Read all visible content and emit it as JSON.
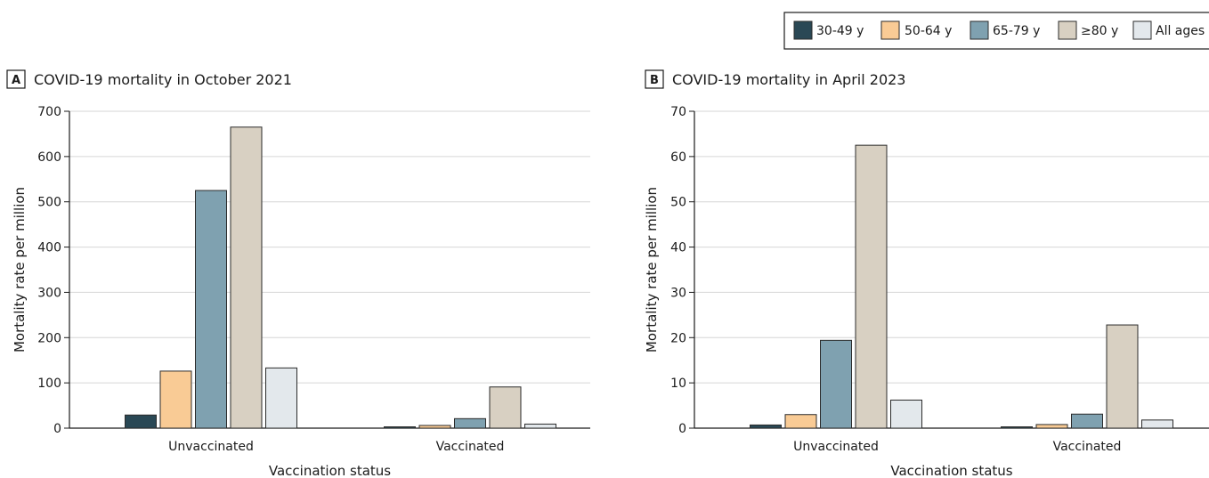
{
  "colors": {
    "30-49 y": "#2a4855",
    "50-64 y": "#f9cb95",
    "65-79 y": "#7fa1b0",
    "≥80 y": "#d8d0c2",
    "All ages": "#e3e8ec",
    "grid": "#d6d6d6",
    "bar_stroke": "#2b2b2b"
  },
  "legend": [
    "30-49 y",
    "50-64 y",
    "65-79 y",
    "≥80 y",
    "All ages"
  ],
  "chart_data": [
    {
      "panel": "A",
      "type": "bar",
      "title": "COVID-19 mortality in October 2021",
      "xlabel": "Vaccination status",
      "ylabel": "Mortality rate per million",
      "ylim": [
        0,
        700
      ],
      "yticks": [
        0,
        100,
        200,
        300,
        400,
        500,
        600,
        700
      ],
      "categories": [
        "Unvaccinated",
        "Vaccinated"
      ],
      "series": [
        {
          "name": "30-49 y",
          "values": [
            29,
            2
          ]
        },
        {
          "name": "50-64 y",
          "values": [
            126,
            6
          ]
        },
        {
          "name": "65-79 y",
          "values": [
            525,
            21
          ]
        },
        {
          "name": "≥80 y",
          "values": [
            665,
            91
          ]
        },
        {
          "name": "All ages",
          "values": [
            133,
            9
          ]
        }
      ]
    },
    {
      "panel": "B",
      "type": "bar",
      "title": "COVID-19 mortality in April 2023",
      "xlabel": "Vaccination status",
      "ylabel": "Mortality rate per million",
      "ylim": [
        0,
        70
      ],
      "yticks": [
        0,
        10,
        20,
        30,
        40,
        50,
        60,
        70
      ],
      "categories": [
        "Unvaccinated",
        "Vaccinated"
      ],
      "series": [
        {
          "name": "30-49 y",
          "values": [
            0.7,
            0.2
          ]
        },
        {
          "name": "50-64 y",
          "values": [
            3.0,
            0.8
          ]
        },
        {
          "name": "65-79 y",
          "values": [
            19.4,
            3.1
          ]
        },
        {
          "name": "≥80 y",
          "values": [
            62.5,
            22.8
          ]
        },
        {
          "name": "All ages",
          "values": [
            6.2,
            1.8
          ]
        }
      ]
    }
  ]
}
